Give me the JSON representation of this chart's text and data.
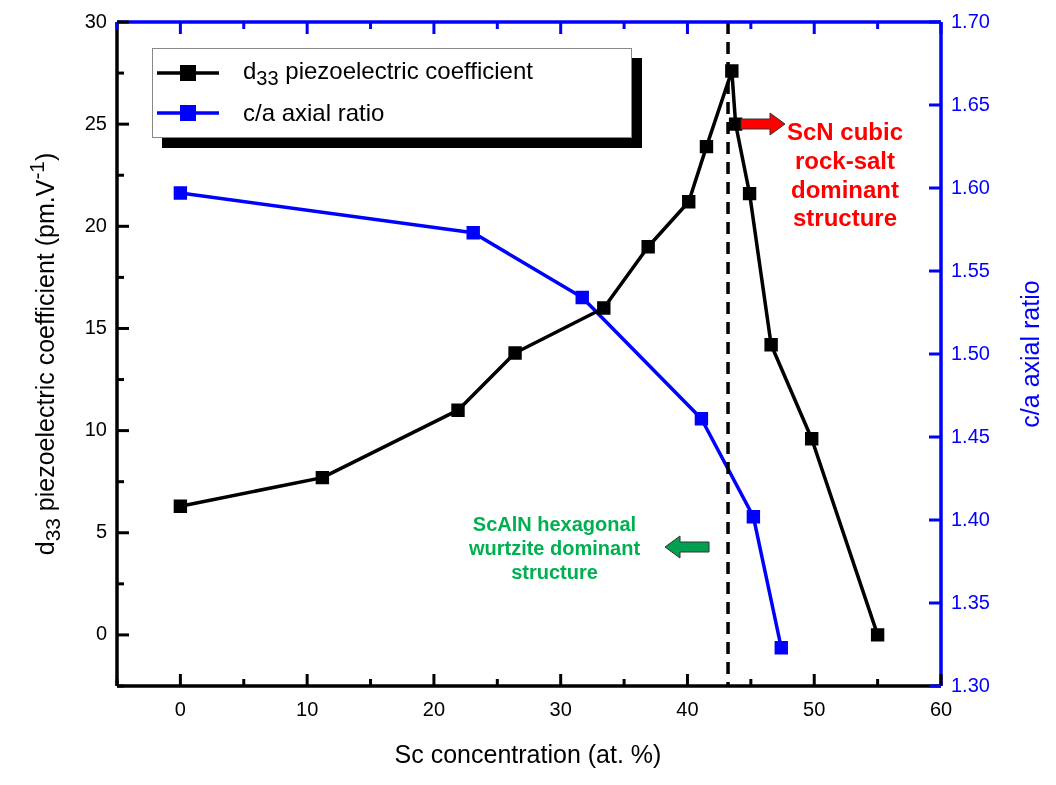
{
  "chart_data": {
    "type": "line",
    "xlabel": "Sc concentration (at. %)",
    "ylabel": "d$_{33}$ piezoelectric coefficient (pm.V$^{-1}$)",
    "y2label": "c/a axial ratio",
    "xlim": [
      -5,
      60
    ],
    "xticks": [
      {
        "value": -5,
        "label": null
      },
      0,
      {
        "value": 5,
        "label": null
      },
      10,
      {
        "value": 15,
        "label": null
      },
      20,
      {
        "value": 25,
        "label": null
      },
      30,
      {
        "value": 35,
        "label": null
      },
      40,
      {
        "value": 45,
        "label": null
      },
      50,
      {
        "value": 55,
        "label": null
      },
      60
    ],
    "ylim": [
      -2.5,
      30
    ],
    "yticks": [
      {
        "value": -2.5,
        "label": null
      },
      0,
      {
        "value": 2.5,
        "label": null
      },
      5,
      {
        "value": 7.5,
        "label": null
      },
      10,
      {
        "value": 12.5,
        "label": null
      },
      15,
      {
        "value": 17.5,
        "label": null
      },
      20,
      {
        "value": 22.5,
        "label": null
      },
      25,
      {
        "value": 27.5,
        "label": null
      },
      30
    ],
    "y2lim": [
      1.3,
      1.7
    ],
    "y2ticks": [
      {
        "value": 1.3,
        "label": "1.30"
      },
      1.35,
      {
        "value": 1.4,
        "label": "1.40"
      },
      1.45,
      {
        "value": 1.5,
        "label": "1.50"
      },
      1.55,
      {
        "value": 1.6,
        "label": "1.60"
      },
      1.65,
      {
        "value": 1.7,
        "label": "1.70"
      }
    ],
    "marker": "square",
    "legend": "top left",
    "series": [
      {
        "name": "d$_{33}$ piezoelectric coefficient",
        "color": "#000000",
        "x": [
          0,
          11.2,
          21.9,
          26.4,
          33.4,
          36.9,
          40.1,
          41.5,
          43.5,
          43.8,
          44.9,
          46.6,
          49.8,
          55.0
        ],
        "values": [
          6.3,
          7.7,
          11.0,
          13.8,
          16.0,
          19.0,
          21.2,
          23.9,
          27.6,
          25.0,
          21.6,
          14.2,
          9.6,
          0
        ]
      },
      {
        "name": "c/a axial ratio",
        "color": "#0000ff",
        "axis": "y2",
        "x": [
          0,
          23.1,
          31.7,
          41.1,
          45.2,
          47.4
        ],
        "values": [
          1.597,
          1.573,
          1.534,
          1.461,
          1.402,
          1.323
        ]
      }
    ],
    "ref_lines": [
      {
        "axis": "x",
        "value": 43.2,
        "color": "#000000",
        "line_style": "dashed"
      }
    ],
    "annotations": [
      "ScN cubic rock-salt dominant structure",
      "ScAlN hexagonal wurtzite dominant structure"
    ]
  }
}
